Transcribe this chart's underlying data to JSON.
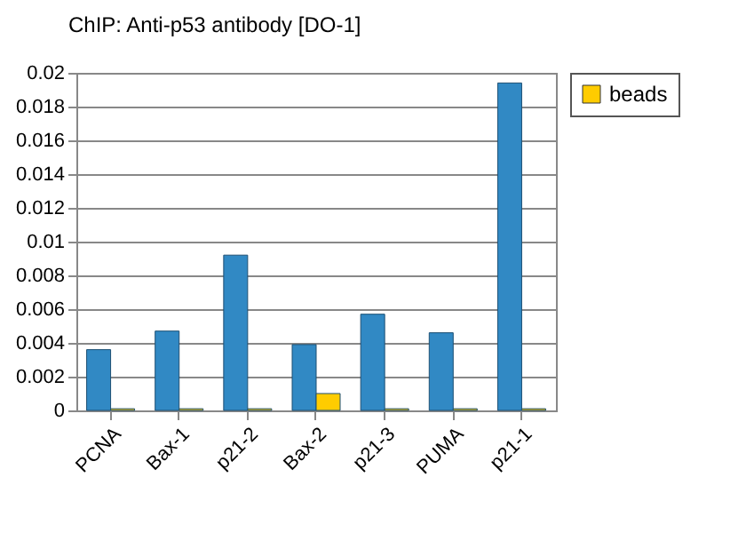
{
  "chart_data": {
    "type": "bar",
    "title": "ChIP: Anti-p53 antibody [DO-1]",
    "categories": [
      "PCNA",
      "Bax-1",
      "p21-2",
      "Bax-2",
      "p21-3",
      "PUMA",
      "p21-1"
    ],
    "series": [
      {
        "color": "#3189c4",
        "values": [
          0.0036,
          0.0047,
          0.0092,
          0.0039,
          0.0057,
          0.0046,
          0.0194
        ]
      },
      {
        "name": "beads",
        "color": "#ffcc00",
        "values": [
          0.0001,
          0.0001,
          0.0001,
          0.001,
          0.0001,
          0.0001,
          0.0001
        ]
      }
    ],
    "ylim": [
      0,
      0.02
    ],
    "yticks": [
      0,
      0.002,
      0.004,
      0.006,
      0.008,
      0.01,
      0.012,
      0.014,
      0.016,
      0.018,
      0.02
    ],
    "grid": "y",
    "legend": "right"
  }
}
